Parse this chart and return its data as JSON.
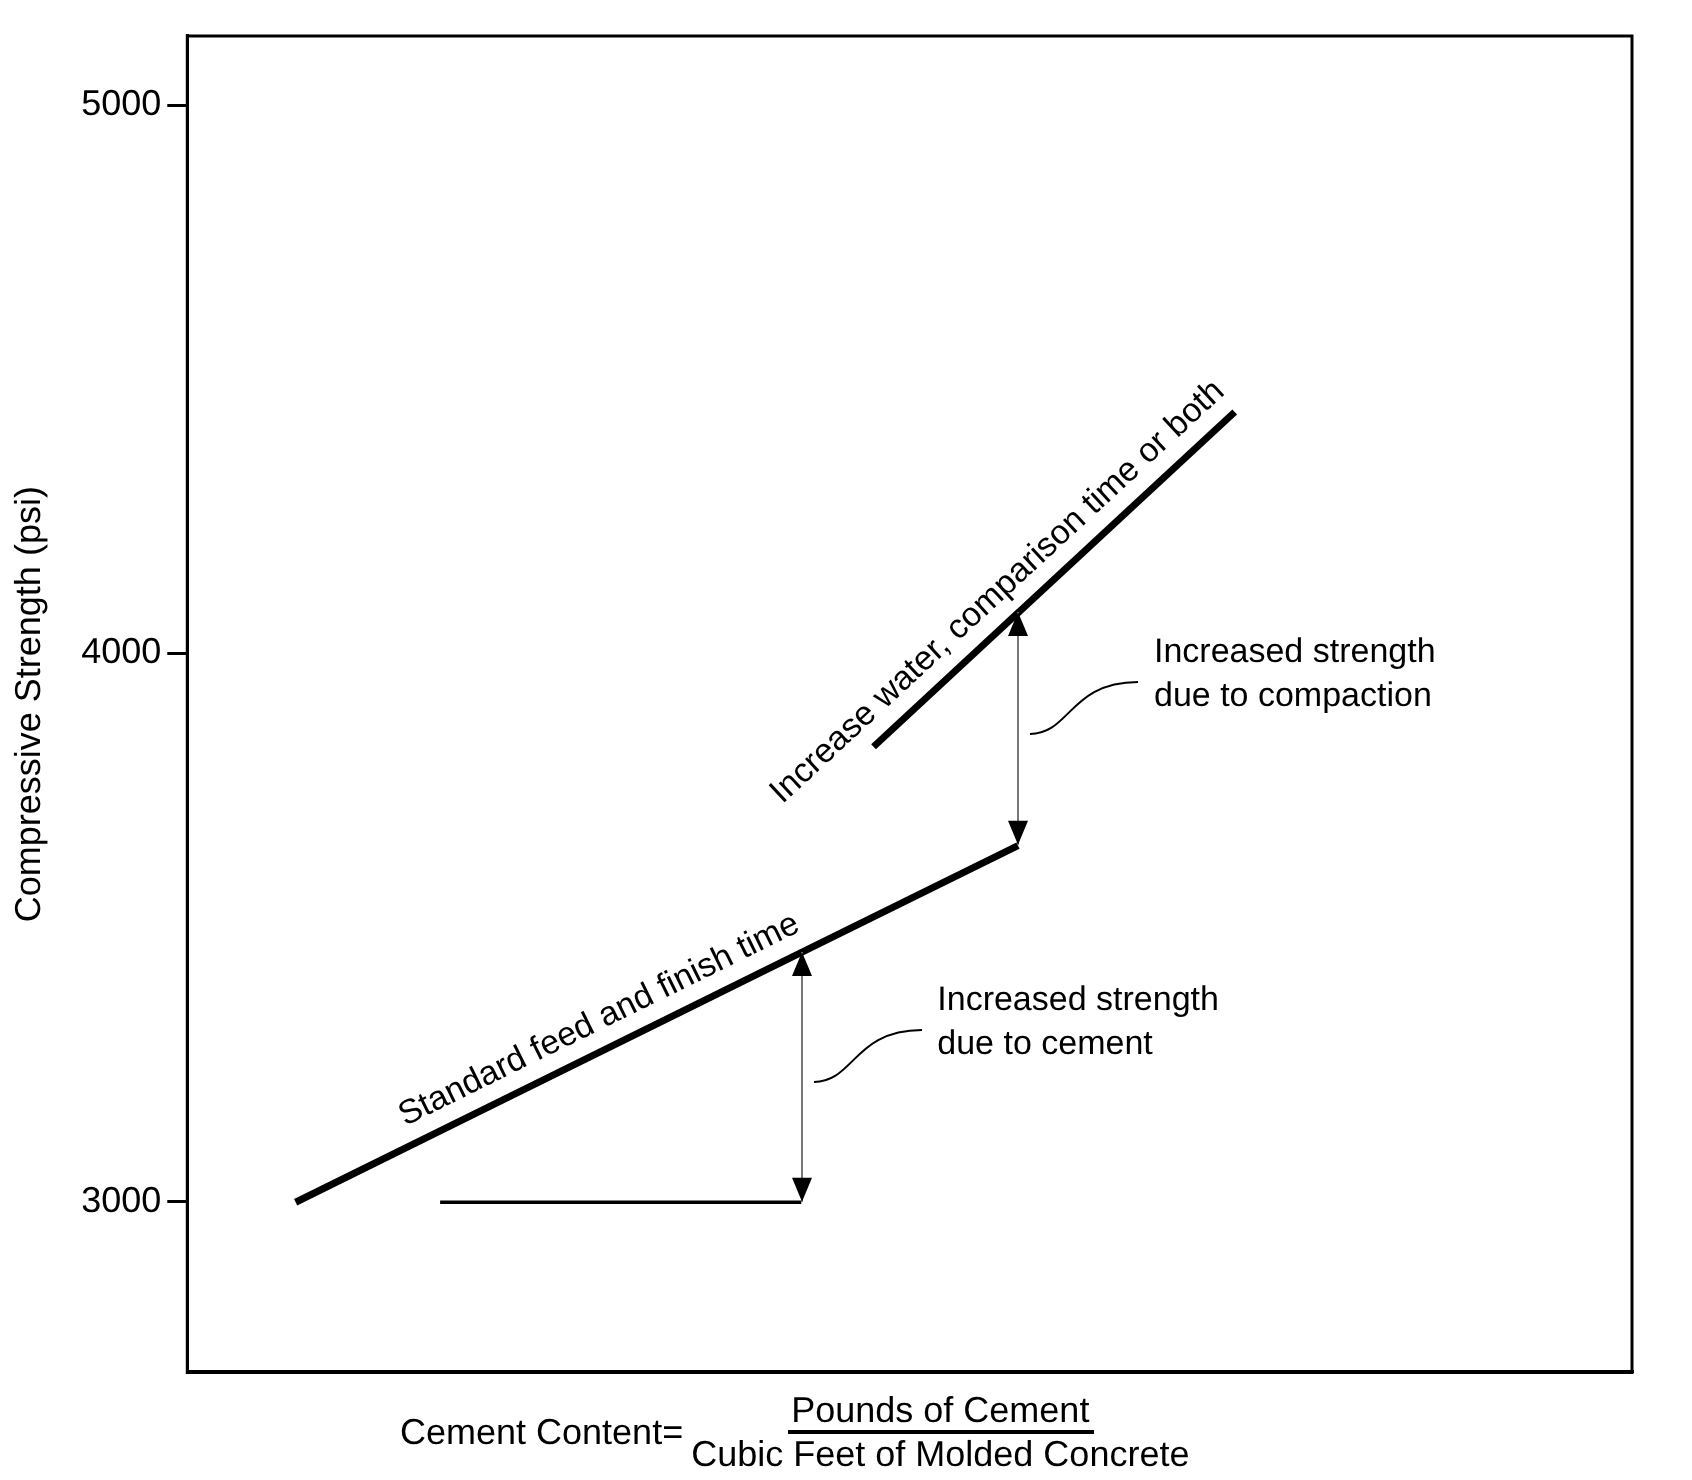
{
  "chart_data": {
    "type": "line",
    "ylabel": "Compressive Strength (psi)",
    "xlabel": "Cement Content=",
    "categories": [
      null,
      null,
      null,
      null,
      null,
      null,
      null,
      null,
      null,
      null,
      null,
      null,
      null,
      null,
      null,
      null,
      null,
      null,
      null,
      null
    ],
    "series": [
      {
        "name": "Standard feed and finish time",
        "color": "#000000",
        "values": [
          null,
          3000,
          null,
          null,
          null,
          null,
          null,
          null,
          null,
          null,
          null,
          3650,
          null,
          null,
          null,
          null,
          null,
          null,
          null,
          null
        ]
      },
      {
        "name": "Increase water, comparison time or both",
        "color": "#000000",
        "values": [
          null,
          null,
          null,
          null,
          null,
          null,
          null,
          null,
          null,
          3830,
          null,
          null,
          null,
          null,
          4440,
          null,
          null,
          null,
          null,
          null
        ]
      },
      {
        "color": "#000000",
        "values": [
          null,
          null,
          null,
          3000,
          null,
          null,
          null,
          null,
          3000,
          null,
          null,
          null,
          null,
          null,
          null,
          null,
          null,
          null,
          null,
          null
        ]
      }
    ],
    "annotations": [
      "Increased strength\ndue to cement",
      "Increased strength\ndue to compaction",
      "Pounds of Cement",
      "Cubic Feet of Molded Concrete"
    ],
    "ylim": [
      2690,
      5125
    ],
    "yticks": [
      3000,
      4000,
      5000
    ],
    "grid": false,
    "legend": false,
    "tick_labels": "y"
  }
}
